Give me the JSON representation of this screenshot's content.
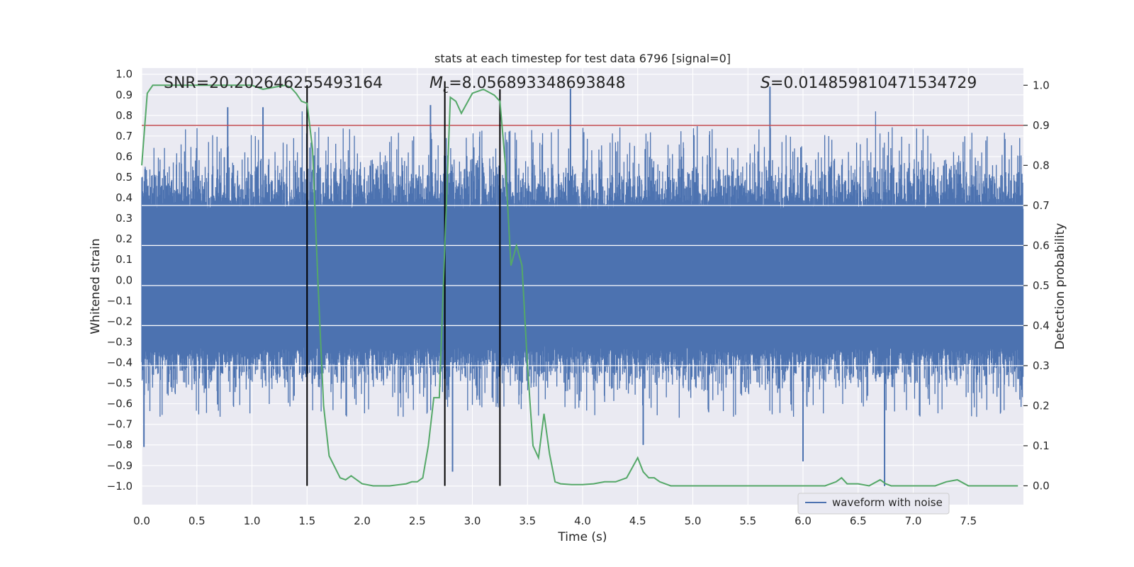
{
  "chart_data": {
    "type": "line",
    "title": "stats at each timestep for test data 6796 [signal=0]",
    "xlabel": "Time (s)",
    "ylabel_left": "Whitened strain",
    "ylabel_right": "Detection probability",
    "xlim": [
      0.0,
      8.0
    ],
    "ylim_left": [
      -1.09,
      1.03
    ],
    "ylim_right": [
      -0.047,
      1.043
    ],
    "x_ticks": [
      "0.0",
      "0.5",
      "1.0",
      "1.5",
      "2.0",
      "2.5",
      "3.0",
      "3.5",
      "4.0",
      "4.5",
      "5.0",
      "5.5",
      "6.0",
      "6.5",
      "7.0",
      "7.5"
    ],
    "x_tick_values": [
      0.0,
      0.5,
      1.0,
      1.5,
      2.0,
      2.5,
      3.0,
      3.5,
      4.0,
      4.5,
      5.0,
      5.5,
      6.0,
      6.5,
      7.0,
      7.5
    ],
    "y_left_ticks": [
      "1.0",
      "0.9",
      "0.8",
      "0.7",
      "0.6",
      "0.5",
      "0.4",
      "0.3",
      "0.2",
      "0.1",
      "0.0",
      "−0.1",
      "−0.2",
      "−0.3",
      "−0.4",
      "−0.5",
      "−0.6",
      "−0.7",
      "−0.8",
      "−0.9",
      "−1.0"
    ],
    "y_left_tick_values": [
      1.0,
      0.9,
      0.8,
      0.7,
      0.6,
      0.5,
      0.4,
      0.3,
      0.2,
      0.1,
      0.0,
      -0.1,
      -0.2,
      -0.3,
      -0.4,
      -0.5,
      -0.6,
      -0.7,
      -0.8,
      -0.9,
      -1.0
    ],
    "y_right_ticks": [
      "1.0",
      "0.9",
      "0.8",
      "0.7",
      "0.6",
      "0.5",
      "0.4",
      "0.3",
      "0.2",
      "0.1",
      "0.0"
    ],
    "y_right_tick_values": [
      1.0,
      0.9,
      0.8,
      0.7,
      0.6,
      0.5,
      0.4,
      0.3,
      0.2,
      0.1,
      0.0
    ],
    "annotations": {
      "snr": "SNR=20.202646255493164",
      "mc_symbol": "M",
      "mc_subscript": "c",
      "mc_value": "=8.056893348693848",
      "s_symbol": "S",
      "s_value": "=0.014859810471534729"
    },
    "threshold": {
      "value": 0.9,
      "axis": "right",
      "color": "#c44e52"
    },
    "vertical_lines": [
      1.5,
      2.75,
      3.25
    ],
    "legend": {
      "label": "waveform with noise",
      "position": "lower-right"
    },
    "series": [
      {
        "name": "waveform with noise",
        "axis": "left",
        "color": "#4c72b0",
        "description": "dense whitened strain noise, band approx -0.42..0.45",
        "peaks": [
          {
            "x": 0.02,
            "y": -0.81
          },
          {
            "x": 0.78,
            "y": 0.84
          },
          {
            "x": 1.1,
            "y": 0.84
          },
          {
            "x": 2.62,
            "y": 0.85
          },
          {
            "x": 2.82,
            "y": -0.93
          },
          {
            "x": 3.89,
            "y": 0.93
          },
          {
            "x": 5.7,
            "y": 0.94
          },
          {
            "x": 6.74,
            "y": -1.0
          },
          {
            "x": 4.55,
            "y": -0.8
          },
          {
            "x": 6.0,
            "y": -0.88
          }
        ]
      },
      {
        "name": "detection probability",
        "axis": "right",
        "color": "#55a868",
        "x": [
          0.0,
          0.05,
          0.1,
          0.2,
          0.5,
          0.8,
          1.0,
          1.1,
          1.2,
          1.3,
          1.35,
          1.4,
          1.45,
          1.5,
          1.55,
          1.6,
          1.65,
          1.7,
          1.8,
          1.85,
          1.9,
          2.0,
          2.1,
          2.25,
          2.4,
          2.45,
          2.5,
          2.55,
          2.6,
          2.65,
          2.7,
          2.75,
          2.8,
          2.85,
          2.9,
          3.0,
          3.1,
          3.2,
          3.25,
          3.3,
          3.35,
          3.4,
          3.45,
          3.5,
          3.55,
          3.6,
          3.65,
          3.7,
          3.75,
          3.8,
          3.9,
          4.0,
          4.1,
          4.2,
          4.3,
          4.4,
          4.5,
          4.55,
          4.6,
          4.65,
          4.7,
          4.8,
          4.9,
          5.0,
          5.2,
          5.5,
          5.7,
          5.8,
          6.0,
          6.2,
          6.3,
          6.35,
          6.4,
          6.5,
          6.6,
          6.7,
          6.75,
          6.8,
          6.9,
          7.0,
          7.2,
          7.3,
          7.4,
          7.5,
          7.6,
          7.8,
          7.95
        ],
        "y": [
          0.8,
          0.98,
          1.0,
          1.0,
          1.0,
          1.0,
          1.0,
          0.99,
          0.995,
          1.0,
          0.995,
          0.98,
          0.96,
          0.955,
          0.84,
          0.5,
          0.2,
          0.075,
          0.02,
          0.015,
          0.025,
          0.005,
          0.0,
          0.0,
          0.005,
          0.01,
          0.01,
          0.02,
          0.1,
          0.22,
          0.22,
          0.6,
          0.97,
          0.96,
          0.93,
          0.98,
          0.99,
          0.975,
          0.96,
          0.8,
          0.55,
          0.6,
          0.55,
          0.3,
          0.1,
          0.07,
          0.18,
          0.08,
          0.01,
          0.005,
          0.003,
          0.003,
          0.005,
          0.01,
          0.01,
          0.02,
          0.07,
          0.035,
          0.02,
          0.02,
          0.01,
          0.0,
          0.0,
          0.0,
          0.0,
          0.0,
          0.0,
          0.0,
          0.0,
          0.0,
          0.01,
          0.02,
          0.005,
          0.005,
          0.0,
          0.015,
          0.005,
          0.0,
          0.0,
          0.0,
          0.0,
          0.01,
          0.015,
          0.0,
          0.0,
          0.0,
          0.0
        ]
      }
    ]
  }
}
